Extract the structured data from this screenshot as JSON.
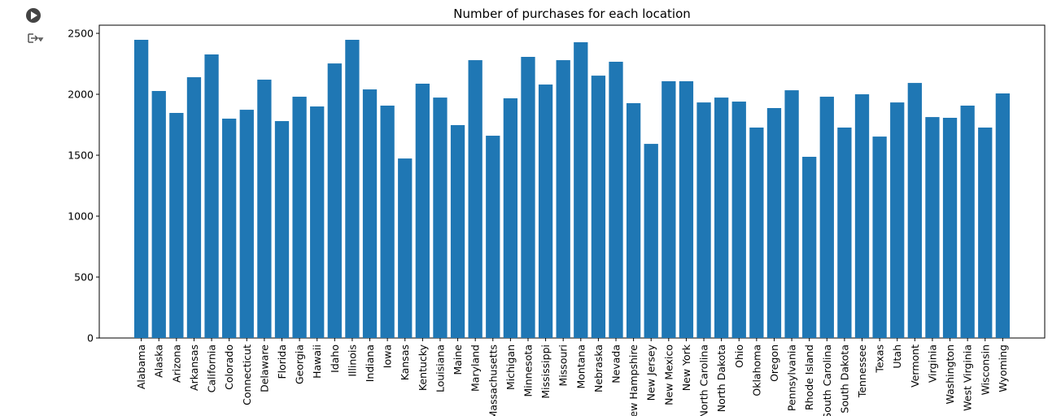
{
  "chart_data": {
    "type": "bar",
    "title": "Number of purchases for each location",
    "categories": [
      "Alabama",
      "Alaska",
      "Arizona",
      "Arkansas",
      "California",
      "Colorado",
      "Connecticut",
      "Delaware",
      "Florida",
      "Georgia",
      "Hawaii",
      "Idaho",
      "Illinois",
      "Indiana",
      "Iowa",
      "Kansas",
      "Kentucky",
      "Louisiana",
      "Maine",
      "Maryland",
      "Massachusetts",
      "Michigan",
      "Minnesota",
      "Mississippi",
      "Missouri",
      "Montana",
      "Nebraska",
      "Nevada",
      "New Hampshire",
      "New Jersey",
      "New Mexico",
      "New York",
      "North Carolina",
      "North Dakota",
      "Ohio",
      "Oklahoma",
      "Oregon",
      "Pennsylvania",
      "Rhode Island",
      "South Carolina",
      "South Dakota",
      "Tennessee",
      "Texas",
      "Utah",
      "Vermont",
      "Virginia",
      "Washington",
      "West Virginia",
      "Wisconsin",
      "Wyoming"
    ],
    "values": [
      2447,
      2027,
      1847,
      2140,
      2327,
      1800,
      1873,
      2120,
      1780,
      1980,
      1900,
      2253,
      2447,
      2040,
      1907,
      1473,
      2087,
      1973,
      1747,
      2280,
      1660,
      1967,
      2307,
      2080,
      2280,
      2427,
      2153,
      2267,
      1927,
      1593,
      2107,
      2107,
      1933,
      1973,
      1940,
      1727,
      1887,
      2033,
      1487,
      1980,
      1727,
      2000,
      1653,
      1933,
      2093,
      1813,
      1807,
      1907,
      1727,
      2007
    ],
    "color": "#1f77b4",
    "ylim": [
      0,
      2567
    ],
    "yticks": [
      0,
      500,
      1000,
      1500,
      2000,
      2500
    ]
  }
}
